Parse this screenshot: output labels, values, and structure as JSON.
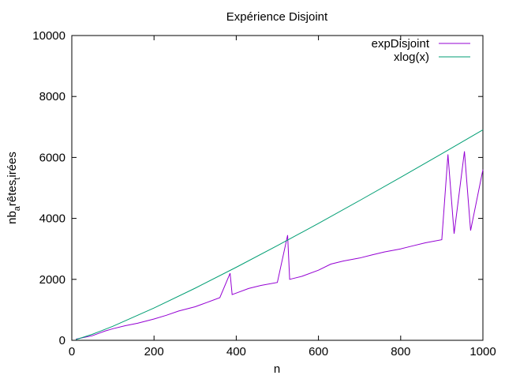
{
  "chart_data": {
    "type": "line",
    "title": "Expérience Disjoint",
    "xlabel": "n",
    "ylabel": {
      "parts": [
        "nb",
        "a",
        "rêtes",
        "t",
        "irées"
      ]
    },
    "xlim": [
      0,
      1000
    ],
    "ylim": [
      0,
      10000
    ],
    "xticks": [
      0,
      200,
      400,
      600,
      800,
      1000
    ],
    "yticks": [
      0,
      2000,
      4000,
      6000,
      8000,
      10000
    ],
    "grid": false,
    "legend_position": "top-right",
    "series": [
      {
        "name": "expDisjoint",
        "color": "#9400d3",
        "x": [
          10,
          50,
          80,
          100,
          130,
          160,
          200,
          230,
          260,
          300,
          330,
          360,
          385,
          390,
          400,
          430,
          460,
          500,
          525,
          530,
          560,
          600,
          630,
          660,
          700,
          730,
          760,
          800,
          830,
          860,
          900,
          915,
          930,
          955,
          970,
          1000
        ],
        "y": [
          40,
          150,
          300,
          380,
          480,
          560,
          700,
          820,
          960,
          1100,
          1250,
          1400,
          2200,
          1500,
          1550,
          1700,
          1800,
          1900,
          3450,
          2000,
          2100,
          2300,
          2500,
          2600,
          2700,
          2800,
          2900,
          3000,
          3100,
          3200,
          3300,
          6100,
          3500,
          6200,
          3600,
          5600
        ]
      },
      {
        "name": "xlog(x)",
        "color": "#009e73",
        "x": [
          10,
          50,
          100,
          200,
          300,
          400,
          500,
          600,
          700,
          800,
          900,
          1000
        ],
        "y": [
          23,
          196,
          461,
          1060,
          1711,
          2397,
          3107,
          3838,
          4586,
          5348,
          6122,
          6908
        ]
      }
    ]
  }
}
